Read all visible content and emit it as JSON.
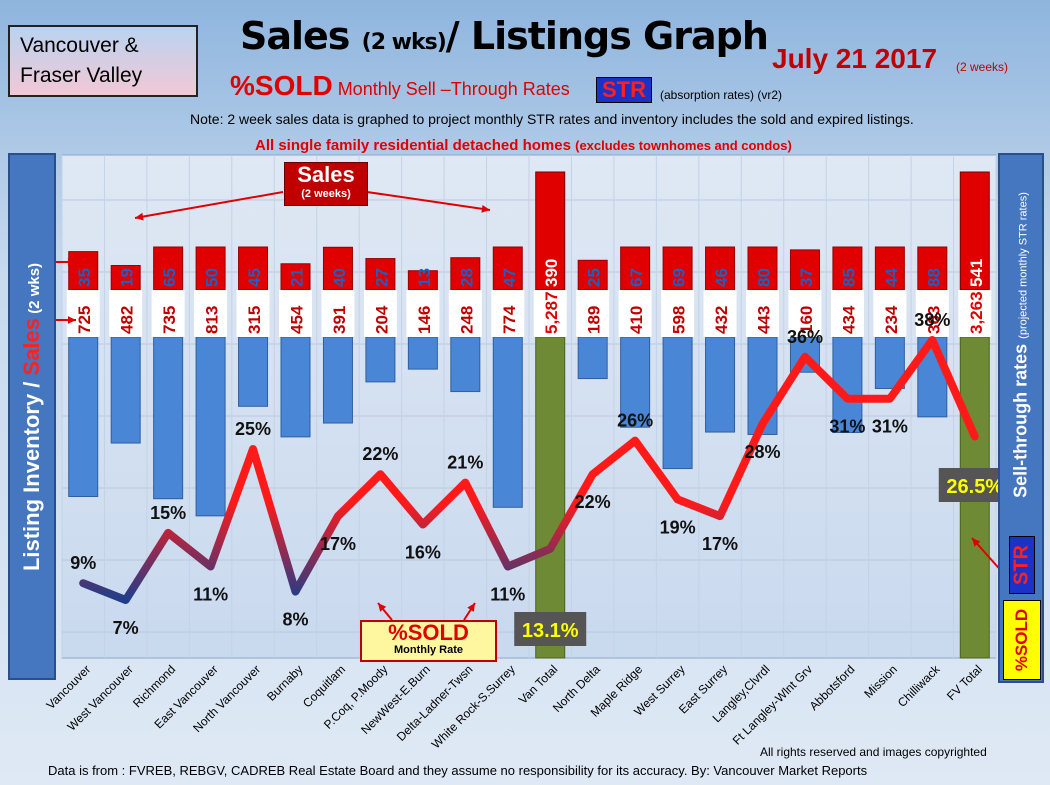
{
  "header": {
    "region_line1": "Vancouver &",
    "region_line2": "Fraser Valley",
    "title_main": "Sales ",
    "title_small": "(2 wks)",
    "title_rest": "/ Listings Graph",
    "date": "July 21 2017",
    "date_sub": "(2 weeks)",
    "subtitle_big": "%SOLD",
    "subtitle_rest": " Monthly Sell –Through Rates ",
    "str_badge": "STR",
    "str_note": "(absorption rates) (vr2)",
    "note": "Note: 2 week sales data is graphed to project monthly STR rates and inventory includes the sold and expired listings.",
    "homes_main": "All single family residential detached homes ",
    "homes_paren": "(excludes townhomes and condos)"
  },
  "side": {
    "left_a": "Listing Inventory / ",
    "left_b": "Sales",
    "left_c": " (2  wks)",
    "right_title": "Sell-through rates",
    "right_small": "(projected monthly STR rates)",
    "right_str": "STR",
    "right_sold": "%SOLD"
  },
  "callouts": {
    "sales_title": "Sales",
    "sales_sub": "(2 weeks)",
    "sold_title": "%SOLD",
    "sold_sub": "Monthly Rate"
  },
  "footer": {
    "rights": "All rights reserved and  images copyrighted",
    "source": "Data is from : FVREB, REBGV, CADREB Real Estate Board and they assume no responsibility for its accuracy. By: Vancouver Market Reports"
  },
  "colors": {
    "sales_bar": "#e00000",
    "listing_bar": "#4a86d6",
    "total_bar": "#6f8a34",
    "line_high": "#ff1a1a",
    "line_low": "#1f3d8a",
    "total_label_bg": "#555555",
    "total_label_text": "#ffff00"
  },
  "chart_data": {
    "type": "bar",
    "categories": [
      "Vancouver",
      "West Vancouver",
      "Richmond",
      "East Vancouver",
      "North Vancouver",
      "Burnaby",
      "Coquitlam",
      "P.Coq, P.Moody",
      "NewWest-E.Burn",
      "Delta-Ladner-Twsn",
      "White Rock-S.Surrey",
      "Van Total",
      "North Delta",
      "Maple Ridge",
      "West Surrey",
      "East Surrey",
      "Langley,Clvrdl",
      "Ft Langley-Wlnt Grv",
      "Abbotsford",
      "Mission",
      "Chilliwack",
      "FV Total"
    ],
    "sales_labels": [
      "35",
      "19",
      "65",
      "50",
      "45",
      "21",
      "40",
      "27",
      "13",
      "28",
      "47",
      "390",
      "25",
      "67",
      "69",
      "46",
      "80",
      "37",
      "85",
      "44",
      "88",
      "541"
    ],
    "listing_labels": [
      "725",
      "482",
      "735",
      "813",
      "315",
      "454",
      "391",
      "204",
      "146",
      "248",
      "774",
      "5,287",
      "189",
      "410",
      "598",
      "432",
      "443",
      "160",
      "434",
      "234",
      "363",
      "3,263"
    ],
    "series": [
      {
        "name": "Sales",
        "values": [
          35,
          19,
          65,
          50,
          45,
          21,
          40,
          27,
          13,
          28,
          47,
          390,
          25,
          67,
          69,
          46,
          80,
          37,
          85,
          44,
          88,
          541
        ]
      },
      {
        "name": "Listing Inventory",
        "values": [
          725,
          482,
          735,
          813,
          315,
          454,
          391,
          204,
          146,
          248,
          774,
          5287,
          189,
          410,
          598,
          432,
          443,
          160,
          434,
          234,
          363,
          3263
        ]
      },
      {
        "name": "%SOLD",
        "values": [
          9,
          7,
          15,
          11,
          25,
          8,
          17,
          22,
          16,
          21,
          11,
          13.1,
          22,
          26,
          19,
          17,
          28,
          36,
          31,
          31,
          38,
          26.5
        ]
      }
    ],
    "percent_labels": [
      "9%",
      "7%",
      "15%",
      "11%",
      "25%",
      "8%",
      "17%",
      "22%",
      "16%",
      "21%",
      "11%",
      "13.1%",
      "22%",
      "26%",
      "19%",
      "17%",
      "28%",
      "36%",
      "31%",
      "31%",
      "38%",
      "26.5%"
    ],
    "total_indices": [
      11,
      21
    ],
    "grid": true
  }
}
